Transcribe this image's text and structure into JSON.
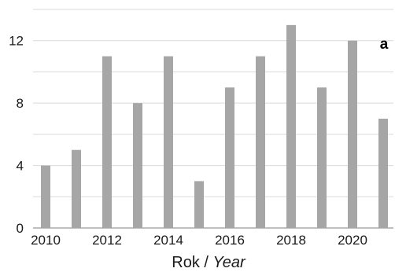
{
  "chart_data": {
    "type": "bar",
    "panel_label": "a",
    "x": [
      2010,
      2011,
      2012,
      2013,
      2014,
      2015,
      2016,
      2017,
      2018,
      2019,
      2020,
      2021
    ],
    "values": [
      4,
      5,
      11,
      8,
      11,
      3,
      9,
      11,
      13,
      9,
      12,
      7
    ],
    "x_tick_labels": [
      "2010",
      "2012",
      "2014",
      "2016",
      "2018",
      "2020"
    ],
    "y_ticks": [
      "0",
      "4",
      "8",
      "12"
    ],
    "xlabel_main": "Rok / ",
    "xlabel_italic": "Year",
    "ylabel": "",
    "ylim": [
      0,
      14
    ],
    "grid": true,
    "bar_color": "#a6a6a6",
    "grid_color": "#d9d9d9"
  }
}
